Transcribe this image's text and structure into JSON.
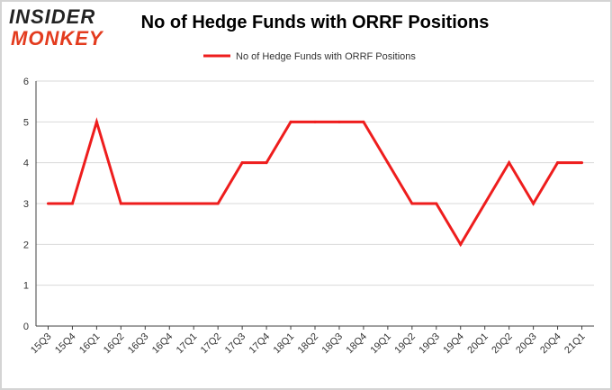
{
  "logo": {
    "line1": "INSIDER",
    "line2": "MONKEY"
  },
  "colors": {
    "series": "#ee1d1d",
    "grid": "#d9d9d9",
    "axis": "#404040",
    "logo_accent": "#e33b1e"
  },
  "chart_data": {
    "type": "line",
    "title": "No of Hedge Funds with ORRF Positions",
    "xlabel": "",
    "ylabel": "",
    "ylim": [
      0,
      6
    ],
    "yticks": [
      0,
      1,
      2,
      3,
      4,
      5,
      6
    ],
    "grid": true,
    "legend_position": "top",
    "categories": [
      "15Q3",
      "15Q4",
      "16Q1",
      "16Q2",
      "16Q3",
      "16Q4",
      "17Q1",
      "17Q2",
      "17Q3",
      "17Q4",
      "18Q1",
      "18Q2",
      "18Q3",
      "18Q4",
      "19Q1",
      "19Q2",
      "19Q3",
      "19Q4",
      "20Q1",
      "20Q2",
      "20Q3",
      "20Q4",
      "21Q1"
    ],
    "series": [
      {
        "name": "No of Hedge Funds with ORRF Positions",
        "values": [
          3,
          3,
          5,
          3,
          3,
          3,
          3,
          3,
          4,
          4,
          5,
          5,
          5,
          5,
          4,
          3,
          3,
          2,
          3,
          4,
          3,
          4,
          4
        ]
      }
    ]
  }
}
